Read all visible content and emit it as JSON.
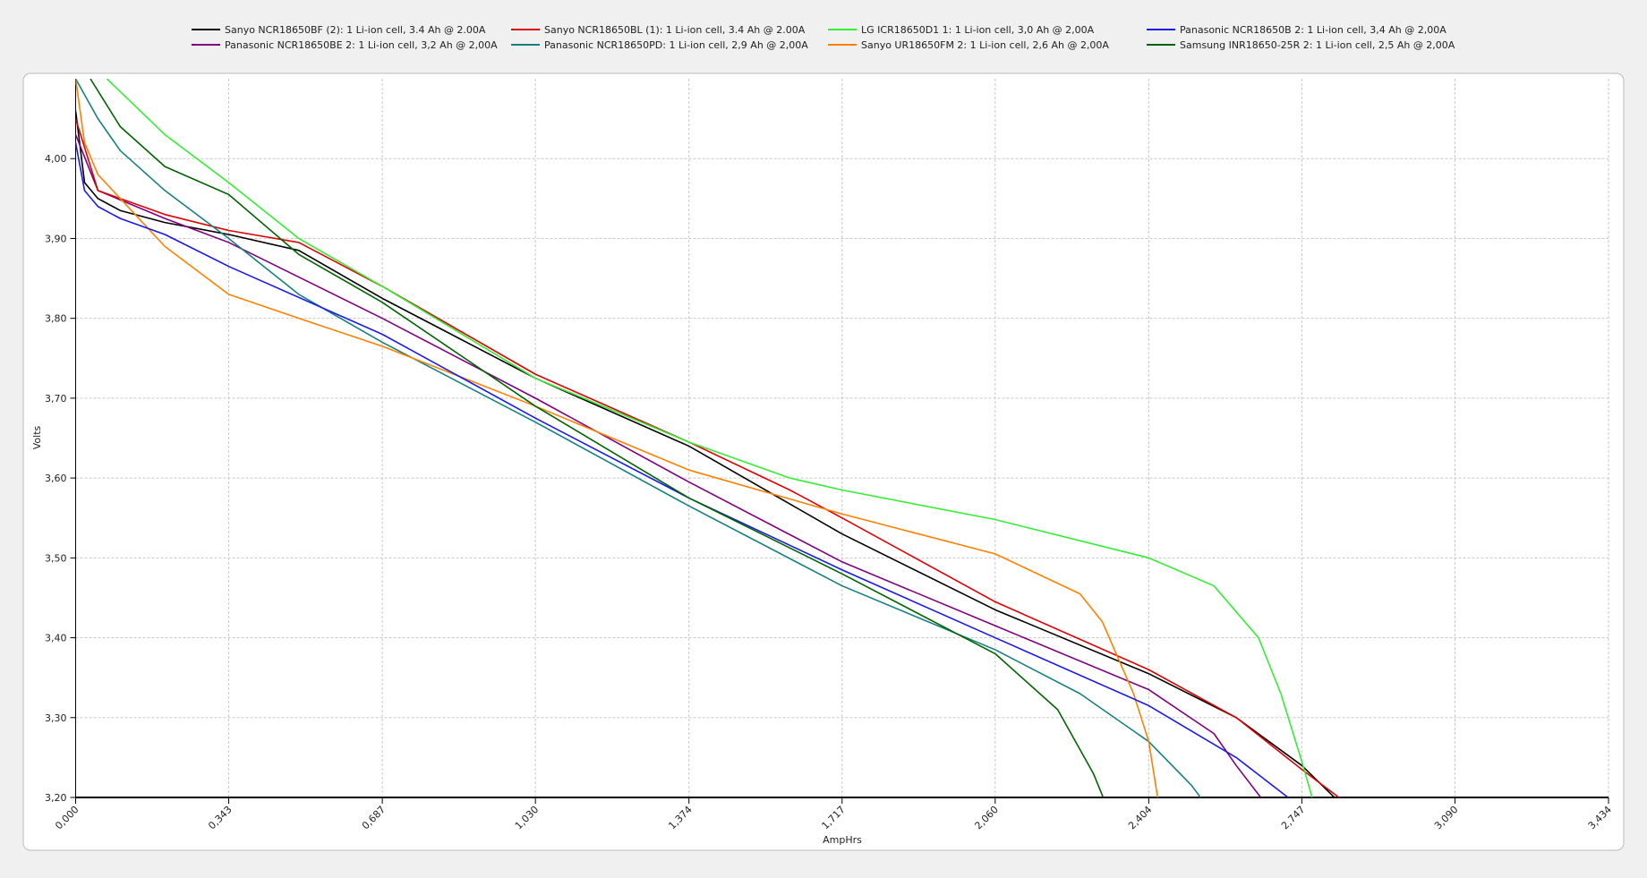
{
  "chart_data": {
    "type": "line",
    "xlabel": "AmpHrs",
    "ylabel": "Volts",
    "xlim": [
      0,
      3.434
    ],
    "ylim": [
      3.2,
      4.1
    ],
    "xticks": [
      {
        "value": 0,
        "label": "0,000"
      },
      {
        "value": 0.343,
        "label": "0,343"
      },
      {
        "value": 0.687,
        "label": "0,687"
      },
      {
        "value": 1.03,
        "label": "1,030"
      },
      {
        "value": 1.374,
        "label": "1,374"
      },
      {
        "value": 1.717,
        "label": "1,717"
      },
      {
        "value": 2.06,
        "label": "2,060"
      },
      {
        "value": 2.404,
        "label": "2,404"
      },
      {
        "value": 2.747,
        "label": "2,747"
      },
      {
        "value": 3.09,
        "label": "3,090"
      },
      {
        "value": 3.434,
        "label": "3,434"
      }
    ],
    "yticks": [
      {
        "value": 3.2,
        "label": "3,20"
      },
      {
        "value": 3.3,
        "label": "3,30"
      },
      {
        "value": 3.4,
        "label": "3,40"
      },
      {
        "value": 3.5,
        "label": "3,50"
      },
      {
        "value": 3.6,
        "label": "3,60"
      },
      {
        "value": 3.7,
        "label": "3,70"
      },
      {
        "value": 3.8,
        "label": "3,80"
      },
      {
        "value": 3.9,
        "label": "3,90"
      },
      {
        "value": 4.0,
        "label": "4,00"
      }
    ],
    "grid": true,
    "series": [
      {
        "name": "Sanyo NCR18650BF (2): 1 Li-ion cell, 3.4 Ah @ 2.00A",
        "color": "#000000",
        "x": [
          0,
          0.02,
          0.05,
          0.1,
          0.2,
          0.343,
          0.5,
          0.687,
          1.03,
          1.374,
          1.717,
          2.06,
          2.404,
          2.6,
          2.747,
          2.82
        ],
        "values": [
          4.06,
          3.97,
          3.95,
          3.935,
          3.92,
          3.905,
          3.885,
          3.825,
          3.725,
          3.64,
          3.53,
          3.435,
          3.355,
          3.3,
          3.24,
          3.2
        ]
      },
      {
        "name": "Panasonic NCR18650BE 2: 1 Li-ion cell, 3,2 Ah @ 2,00A",
        "color": "#800080",
        "x": [
          0,
          0.05,
          0.2,
          0.343,
          0.687,
          1.03,
          1.374,
          1.717,
          2.06,
          2.404,
          2.55,
          2.6,
          2.655
        ],
        "values": [
          4.03,
          3.96,
          3.925,
          3.895,
          3.8,
          3.7,
          3.595,
          3.495,
          3.415,
          3.335,
          3.28,
          3.24,
          3.2
        ]
      },
      {
        "name": "Sanyo NCR18650BL (1): 1 Li-ion cell, 3.4 Ah @ 2.00A",
        "color": "#e00000",
        "x": [
          0,
          0.05,
          0.2,
          0.343,
          0.5,
          0.687,
          1.03,
          1.374,
          1.6,
          1.717,
          2.06,
          2.404,
          2.6,
          2.747,
          2.83
        ],
        "values": [
          4.05,
          3.96,
          3.93,
          3.91,
          3.895,
          3.84,
          3.73,
          3.645,
          3.585,
          3.55,
          3.445,
          3.36,
          3.3,
          3.235,
          3.2
        ]
      },
      {
        "name": "Panasonic NCR18650PD: 1 Li-ion cell, 2,9 Ah @ 2,00A",
        "color": "#168080",
        "x": [
          0,
          0.05,
          0.1,
          0.2,
          0.343,
          0.5,
          0.687,
          1.03,
          1.374,
          1.717,
          2.06,
          2.25,
          2.404,
          2.5,
          2.52
        ],
        "values": [
          4.1,
          4.05,
          4.01,
          3.96,
          3.9,
          3.83,
          3.77,
          3.67,
          3.565,
          3.465,
          3.385,
          3.33,
          3.27,
          3.215,
          3.2
        ]
      },
      {
        "name": "LG ICR18650D1 1: 1 Li-ion cell, 3,0 Ah @ 2,00A",
        "color": "#33ee33",
        "x": [
          0.07,
          0.2,
          0.343,
          0.5,
          0.687,
          1.03,
          1.374,
          1.6,
          1.717,
          2.06,
          2.404,
          2.55,
          2.65,
          2.7,
          2.747,
          2.77
        ],
        "values": [
          4.1,
          4.03,
          3.97,
          3.9,
          3.84,
          3.725,
          3.645,
          3.6,
          3.585,
          3.548,
          3.5,
          3.465,
          3.4,
          3.33,
          3.245,
          3.2
        ]
      },
      {
        "name": "Sanyo UR18650FM 2: 1 Li-ion cell, 2,6 Ah @ 2,00A",
        "color": "#ff8000",
        "x": [
          0,
          0.02,
          0.05,
          0.1,
          0.2,
          0.343,
          0.5,
          0.687,
          1.03,
          1.374,
          1.717,
          2.06,
          2.25,
          2.3,
          2.37,
          2.404,
          2.424
        ],
        "values": [
          4.1,
          4.02,
          3.98,
          3.95,
          3.89,
          3.83,
          3.8,
          3.765,
          3.69,
          3.61,
          3.555,
          3.505,
          3.455,
          3.42,
          3.33,
          3.27,
          3.2
        ]
      },
      {
        "name": "Panasonic NCR18650B 2: 1 Li-ion cell, 3,4 Ah @ 2,00A",
        "color": "#1a1aee",
        "x": [
          0,
          0.02,
          0.05,
          0.1,
          0.2,
          0.343,
          0.687,
          1.03,
          1.374,
          1.717,
          2.06,
          2.404,
          2.6,
          2.716
        ],
        "values": [
          4.02,
          3.96,
          3.94,
          3.925,
          3.905,
          3.865,
          3.78,
          3.675,
          3.575,
          3.485,
          3.4,
          3.315,
          3.25,
          3.2
        ]
      },
      {
        "name": "Samsung INR18650-25R 2: 1 Li-ion cell, 2,5 Ah @ 2,00A",
        "color": "#006400",
        "x": [
          0.033,
          0.1,
          0.2,
          0.343,
          0.5,
          0.687,
          1.03,
          1.374,
          1.717,
          2.06,
          2.2,
          2.28,
          2.302
        ],
        "values": [
          4.1,
          4.04,
          3.99,
          3.955,
          3.88,
          3.82,
          3.69,
          3.575,
          3.48,
          3.38,
          3.31,
          3.23,
          3.2
        ]
      }
    ]
  }
}
